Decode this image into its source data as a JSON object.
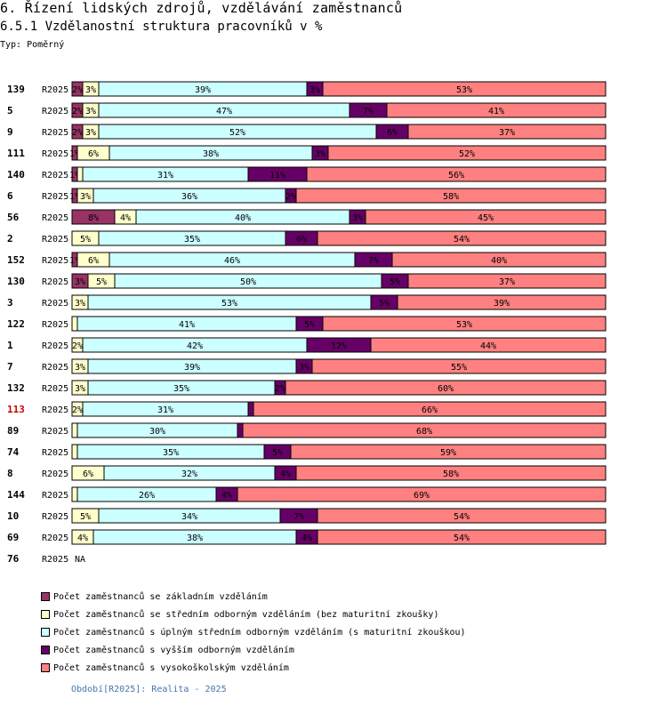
{
  "header": {
    "title": "6. Řízení lidských zdrojů, vzdělávání zaměstnanců",
    "subtitle": "6.5.1 Vzdělanostní struktura pracovníků v %",
    "type": "Typ: Poměrný"
  },
  "chart_data": {
    "type": "bar",
    "orientation": "horizontal",
    "stacked": true,
    "normalized": "percent",
    "period_label": "R2025",
    "highlight_color": "#cc0000",
    "na_text": "NA",
    "series": [
      {
        "name": "Počet zaměstnanců se základním vzděláním",
        "color": "#993366"
      },
      {
        "name": "Počet zaměstnanců se středním odborným vzděláním (bez maturitní zkoušky)",
        "color": "#ffffcc"
      },
      {
        "name": "Počet zaměstnanců s úplným středním odborným vzděláním (s maturitní zkouškou)",
        "color": "#ccffff"
      },
      {
        "name": "Počet zaměstnanců s vyšším odborným vzděláním",
        "color": "#660066"
      },
      {
        "name": "Počet zaměstnanců s vysokoškolským vzděláním",
        "color": "#ff8080"
      }
    ],
    "rows": [
      {
        "id": "139",
        "values": [
          2,
          3,
          39,
          3,
          53
        ]
      },
      {
        "id": "5",
        "values": [
          2,
          3,
          47,
          7,
          41
        ]
      },
      {
        "id": "9",
        "values": [
          2,
          3,
          52,
          6,
          37
        ]
      },
      {
        "id": "111",
        "values": [
          1,
          6,
          38,
          3,
          52
        ]
      },
      {
        "id": "140",
        "values": [
          1,
          1,
          31,
          11,
          56
        ]
      },
      {
        "id": "6",
        "values": [
          1,
          3,
          36,
          2,
          58
        ]
      },
      {
        "id": "56",
        "values": [
          8,
          4,
          40,
          3,
          45
        ]
      },
      {
        "id": "2",
        "values": [
          0,
          5,
          35,
          6,
          54
        ]
      },
      {
        "id": "152",
        "values": [
          1,
          6,
          46,
          7,
          40
        ]
      },
      {
        "id": "130",
        "values": [
          3,
          5,
          50,
          5,
          37
        ]
      },
      {
        "id": "3",
        "values": [
          0,
          3,
          53,
          5,
          39
        ]
      },
      {
        "id": "122",
        "values": [
          0,
          1,
          41,
          5,
          53
        ]
      },
      {
        "id": "1",
        "values": [
          0,
          2,
          42,
          12,
          44
        ]
      },
      {
        "id": "7",
        "values": [
          0,
          3,
          39,
          3,
          55
        ]
      },
      {
        "id": "132",
        "values": [
          0,
          3,
          35,
          2,
          60
        ]
      },
      {
        "id": "113",
        "values": [
          0,
          2,
          31,
          1,
          66
        ],
        "highlight": true
      },
      {
        "id": "89",
        "values": [
          0,
          1,
          30,
          1,
          68
        ]
      },
      {
        "id": "74",
        "values": [
          0,
          1,
          35,
          5,
          59
        ]
      },
      {
        "id": "8",
        "values": [
          0,
          6,
          32,
          4,
          58
        ]
      },
      {
        "id": "144",
        "values": [
          0,
          1,
          26,
          4,
          69
        ]
      },
      {
        "id": "10",
        "values": [
          0,
          5,
          34,
          7,
          54
        ]
      },
      {
        "id": "69",
        "values": [
          0,
          4,
          38,
          4,
          54
        ]
      },
      {
        "id": "76",
        "values": null
      }
    ],
    "hidden_label_segments": [
      {
        "row": "140",
        "series": 1
      },
      {
        "row": "122",
        "series": 1
      },
      {
        "row": "113",
        "series": 3
      },
      {
        "row": "89",
        "series": 1
      },
      {
        "row": "89",
        "series": 3
      },
      {
        "row": "74",
        "series": 1
      },
      {
        "row": "144",
        "series": 1
      }
    ]
  },
  "footer": {
    "text": "Období[R2025]: Realita - 2025"
  }
}
